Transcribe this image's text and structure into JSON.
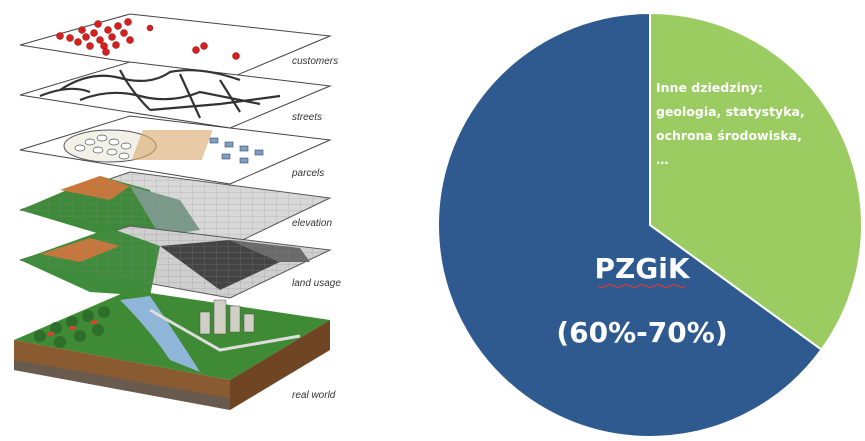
{
  "layers_diagram": {
    "layers": [
      {
        "id": "customers",
        "label": "customers"
      },
      {
        "id": "streets",
        "label": "streets"
      },
      {
        "id": "parcels",
        "label": "parcels"
      },
      {
        "id": "elevation",
        "label": "elevation"
      },
      {
        "id": "land_usage",
        "label": "land usage"
      },
      {
        "id": "real_world",
        "label": "real world"
      }
    ]
  },
  "pie": {
    "colors": {
      "major": "#2e5a8f",
      "minor": "#9bcc62",
      "border": "#ffffff"
    },
    "minor_label_lines": [
      "Inne dziedziny:",
      "geologia, statystyka,",
      "ochrona środowiska,",
      "…"
    ],
    "major_label_title": "PZGiK",
    "major_label_sub": "(60%-70%)"
  },
  "chart_data": {
    "type": "pie",
    "slices": [
      {
        "label": "PZGiK",
        "value": 65,
        "range_text": "(60%-70%)",
        "color": "#2e5a8f"
      },
      {
        "label": "Inne dziedziny: geologia, statystyka, ochrona środowiska, …",
        "value": 35,
        "color": "#9bcc62"
      }
    ]
  }
}
